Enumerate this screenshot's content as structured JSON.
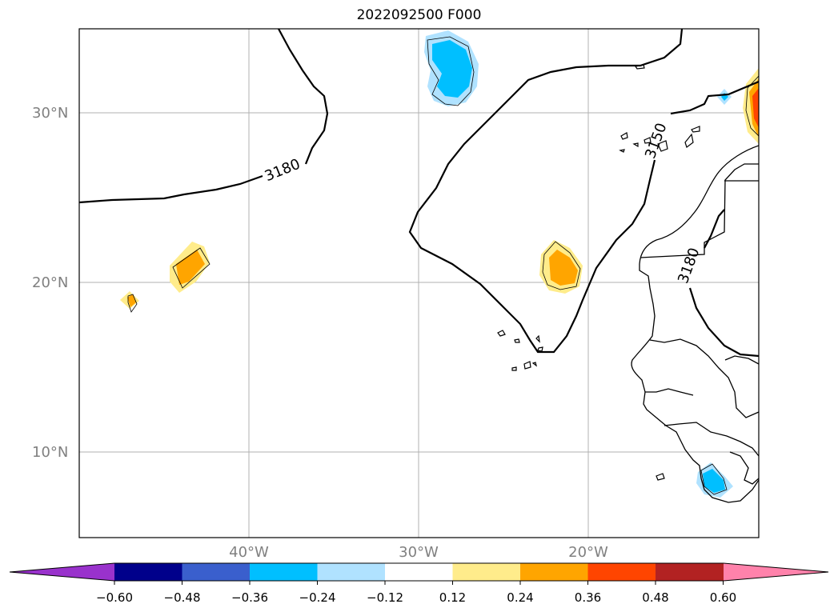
{
  "title": "2022092500 F000",
  "lat_ticks": [
    "30°N",
    "20°N",
    "10°N"
  ],
  "lon_ticks": [
    "40°W",
    "30°W",
    "20°W"
  ],
  "contour_labels": [
    "3180",
    "3150",
    "3180"
  ],
  "colorbar": {
    "ticks": [
      "−0.60",
      "−0.48",
      "−0.36",
      "−0.24",
      "−0.12",
      "0.12",
      "0.24",
      "0.36",
      "0.48",
      "0.60"
    ],
    "colors": [
      "#9932cc",
      "#00008b",
      "#3a5fcd",
      "#00bfff",
      "#b0e2ff",
      "#ffffff",
      "#ffec8b",
      "#ffa500",
      "#ff4500",
      "#b22222",
      "#ff82ab"
    ]
  },
  "colors": {
    "light_yellow": "#ffec8b",
    "orange": "#ffa500",
    "red_orange": "#ff4500",
    "deep_sky_blue": "#00bfff",
    "light_blue": "#b0e2ff",
    "gridline": "#b0b0b0"
  }
}
